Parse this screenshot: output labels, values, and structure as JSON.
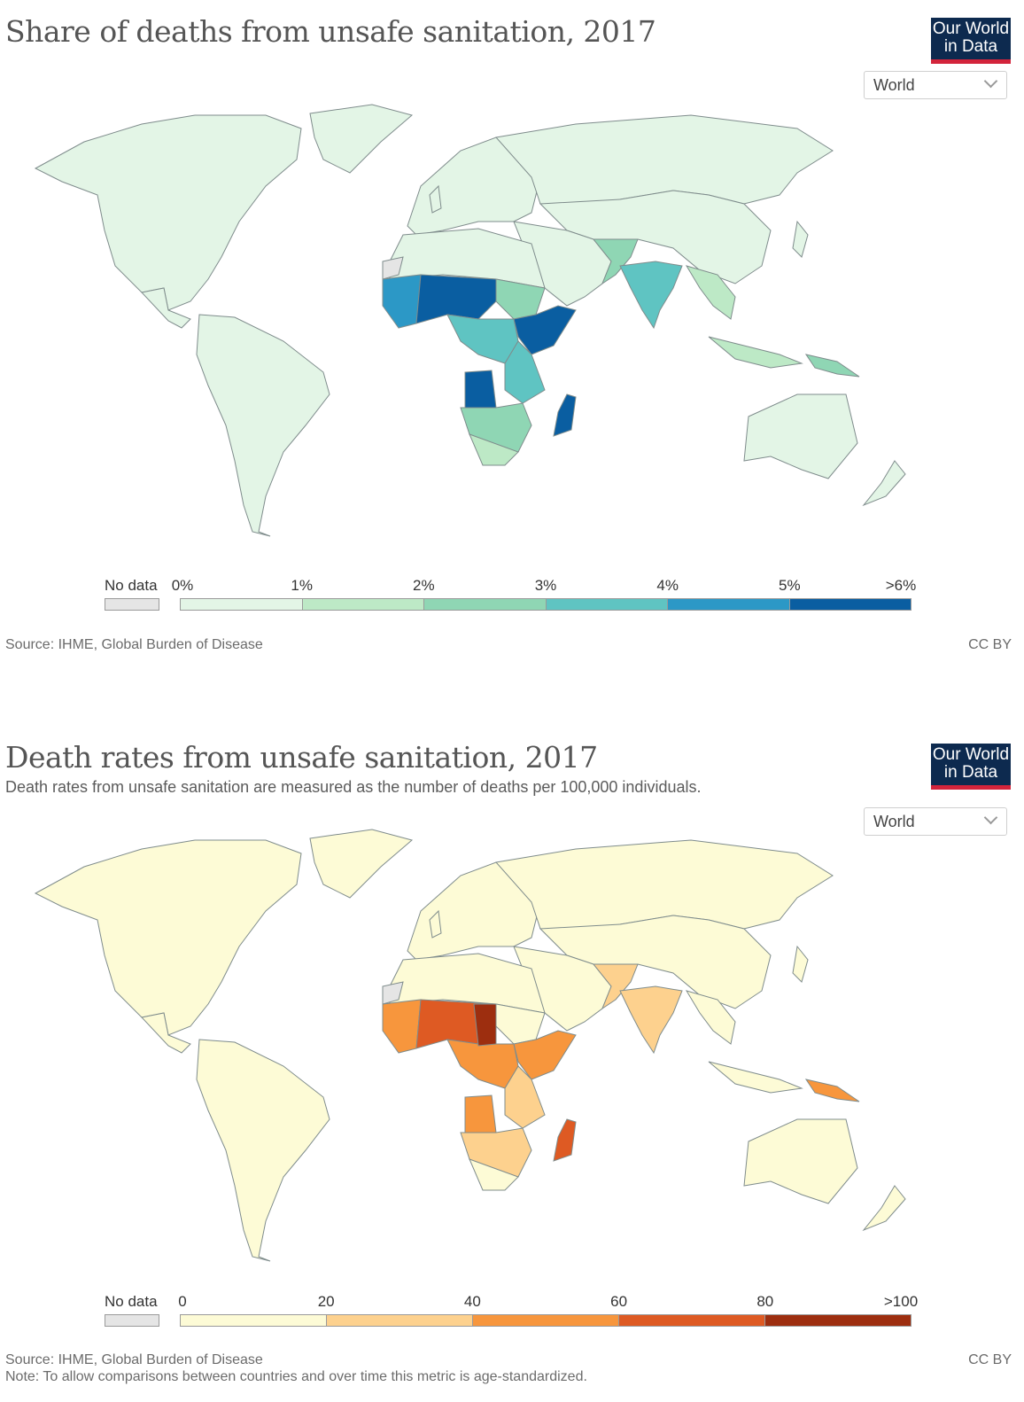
{
  "panels": [
    {
      "title": "Share of deaths from unsafe sanitation, 2017",
      "subtitle": "",
      "logo": [
        "Our World",
        "in Data"
      ],
      "region_select": "World",
      "legend": {
        "no_data_label": "No data",
        "ticks": [
          "0%",
          "1%",
          "2%",
          "3%",
          "4%",
          "5%",
          ">6%"
        ],
        "colors": [
          "#e3f5e6",
          "#bde9c6",
          "#8fd6b4",
          "#5fc4c2",
          "#2c98c6",
          "#0a5ea1"
        ]
      },
      "source": "Source: IHME, Global Burden of Disease",
      "note": "",
      "license": "CC BY"
    },
    {
      "title": "Death rates from unsafe sanitation, 2017",
      "subtitle": "Death rates from unsafe sanitation are measured as the number of deaths per 100,000 individuals.",
      "logo": [
        "Our World",
        "in Data"
      ],
      "region_select": "World",
      "legend": {
        "no_data_label": "No data",
        "ticks": [
          "0",
          "20",
          "40",
          "60",
          "80",
          ">100"
        ],
        "colors": [
          "#fdfbd6",
          "#fdd18e",
          "#f7963d",
          "#de5a23",
          "#9d2e0f"
        ]
      },
      "source": "Source: IHME, Global Burden of Disease",
      "note": "Note: To allow comparisons between countries and over time this metric is age-standardized.",
      "license": "CC BY"
    }
  ],
  "map_fills": {
    "share": {
      "base": "#e3f5e6",
      "no_data": "#e5e5e5",
      "india": "#5fc4c2",
      "pakistan": "#8fd6b4",
      "se_asia": "#bde9c6",
      "west_africa": "#2c98c6",
      "sahel": "#0a5ea1",
      "sudan": "#8fd6b4",
      "horn": "#0a5ea1",
      "central_africa": "#5fc4c2",
      "drc": "#0a5ea1",
      "east_africa": "#5fc4c2",
      "southern_africa": "#8fd6b4",
      "south_africa": "#bde9c6",
      "madagascar": "#0a5ea1",
      "png": "#8fd6b4"
    },
    "rate": {
      "base": "#fdfbd6",
      "no_data": "#e5e5e5",
      "india": "#fdd18e",
      "pakistan": "#fdd18e",
      "se_asia": "#fdfbd6",
      "west_africa": "#f7963d",
      "sahel": "#de5a23",
      "sudan": "#fdfbd6",
      "horn": "#f7963d",
      "central_africa": "#f7963d",
      "drc": "#f7963d",
      "east_africa": "#fdd18e",
      "southern_africa": "#fdd18e",
      "south_africa": "#fdfbd6",
      "madagascar": "#de5a23",
      "png": "#f7963d",
      "chad": "#9d2e0f"
    }
  }
}
